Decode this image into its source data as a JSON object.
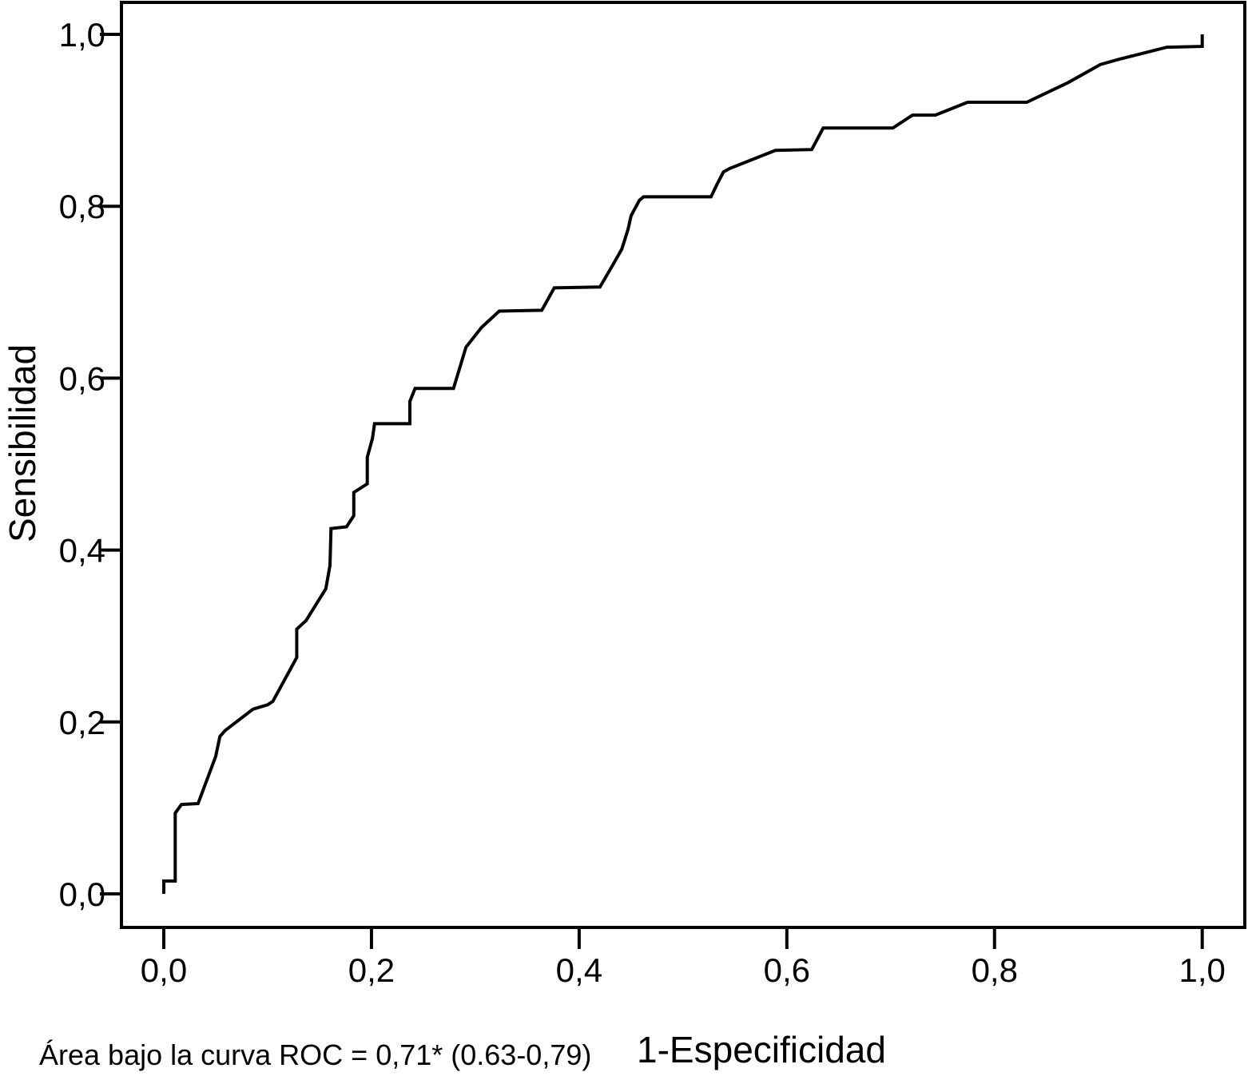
{
  "figure": {
    "background_color": "#ffffff",
    "line_color": "#000000",
    "footnote": "Área bajo la curva ROC = 0,71* (0.63-0,79)"
  },
  "chart_data": {
    "type": "line",
    "subtype": "roc-curve",
    "title": "",
    "xlabel": "1-Especificidad",
    "ylabel": "Sensibilidad",
    "xlim": [
      0,
      1
    ],
    "ylim": [
      0,
      1
    ],
    "grid": false,
    "legend_position": "none",
    "x_tick_labels": [
      "0,0",
      "0,2",
      "0,4",
      "0,6",
      "0,8",
      "1,0"
    ],
    "y_tick_labels": [
      "0,0",
      "0,2",
      "0,4",
      "0,6",
      "0,8",
      "1,0"
    ],
    "x_tick_values": [
      0,
      0.2,
      0.4,
      0.6,
      0.8,
      1.0
    ],
    "y_tick_values": [
      0,
      0.2,
      0.4,
      0.6,
      0.8,
      1.0
    ],
    "auc": 0.71,
    "auc_ci_low": 0.63,
    "auc_ci_high": 0.79,
    "series": [
      {
        "name": "ROC",
        "color": "#000000",
        "points": [
          [
            0.0,
            0.0
          ],
          [
            0.0,
            0.015
          ],
          [
            0.011,
            0.015
          ],
          [
            0.011,
            0.094
          ],
          [
            0.017,
            0.104
          ],
          [
            0.033,
            0.105
          ],
          [
            0.05,
            0.16
          ],
          [
            0.054,
            0.183
          ],
          [
            0.059,
            0.19
          ],
          [
            0.086,
            0.215
          ],
          [
            0.1,
            0.22
          ],
          [
            0.105,
            0.224
          ],
          [
            0.128,
            0.275
          ],
          [
            0.128,
            0.308
          ],
          [
            0.137,
            0.318
          ],
          [
            0.156,
            0.355
          ],
          [
            0.16,
            0.382
          ],
          [
            0.161,
            0.425
          ],
          [
            0.176,
            0.427
          ],
          [
            0.183,
            0.44
          ],
          [
            0.183,
            0.467
          ],
          [
            0.196,
            0.477
          ],
          [
            0.196,
            0.508
          ],
          [
            0.201,
            0.53
          ],
          [
            0.203,
            0.547
          ],
          [
            0.237,
            0.547
          ],
          [
            0.237,
            0.573
          ],
          [
            0.242,
            0.588
          ],
          [
            0.279,
            0.588
          ],
          [
            0.291,
            0.636
          ],
          [
            0.306,
            0.659
          ],
          [
            0.323,
            0.678
          ],
          [
            0.364,
            0.679
          ],
          [
            0.376,
            0.705
          ],
          [
            0.42,
            0.706
          ],
          [
            0.433,
            0.733
          ],
          [
            0.441,
            0.75
          ],
          [
            0.447,
            0.773
          ],
          [
            0.45,
            0.789
          ],
          [
            0.458,
            0.807
          ],
          [
            0.462,
            0.811
          ],
          [
            0.527,
            0.811
          ],
          [
            0.533,
            0.826
          ],
          [
            0.539,
            0.84
          ],
          [
            0.545,
            0.844
          ],
          [
            0.589,
            0.865
          ],
          [
            0.624,
            0.866
          ],
          [
            0.635,
            0.891
          ],
          [
            0.702,
            0.891
          ],
          [
            0.721,
            0.906
          ],
          [
            0.743,
            0.906
          ],
          [
            0.774,
            0.921
          ],
          [
            0.831,
            0.921
          ],
          [
            0.871,
            0.944
          ],
          [
            0.902,
            0.965
          ],
          [
            0.92,
            0.971
          ],
          [
            0.966,
            0.985
          ],
          [
            1.0,
            0.986
          ],
          [
            1.0,
            1.0
          ]
        ]
      }
    ]
  }
}
